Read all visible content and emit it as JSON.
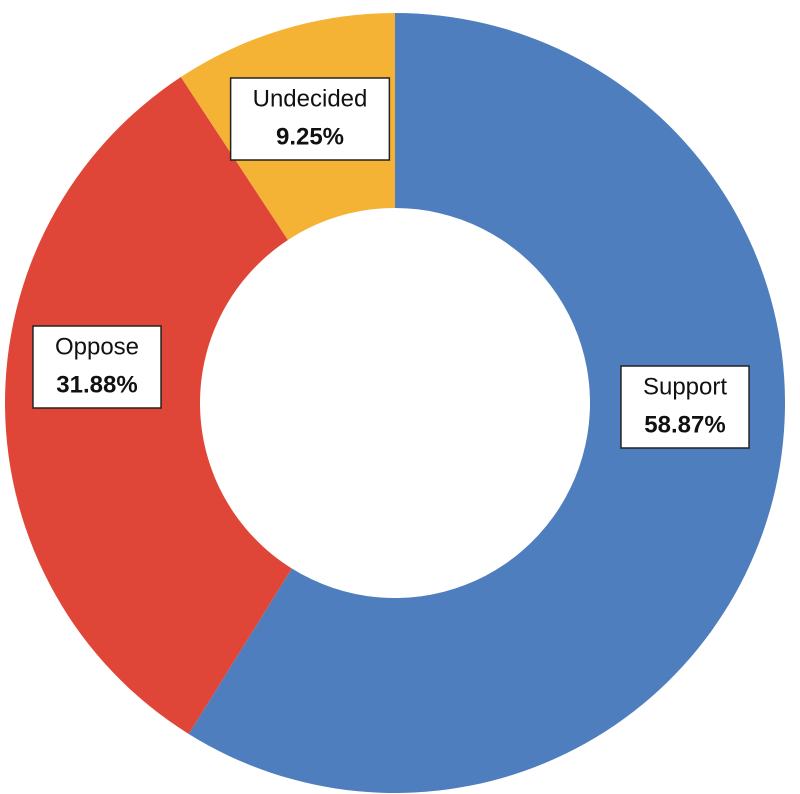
{
  "chart_data": {
    "type": "donut",
    "categories": [
      "Support",
      "Oppose",
      "Undecided"
    ],
    "values": [
      58.87,
      31.88,
      9.25
    ],
    "value_labels": [
      "58.87%",
      "31.88%",
      "9.25%"
    ],
    "colors": [
      "#4f7ebe",
      "#e04638",
      "#f5b335"
    ]
  }
}
